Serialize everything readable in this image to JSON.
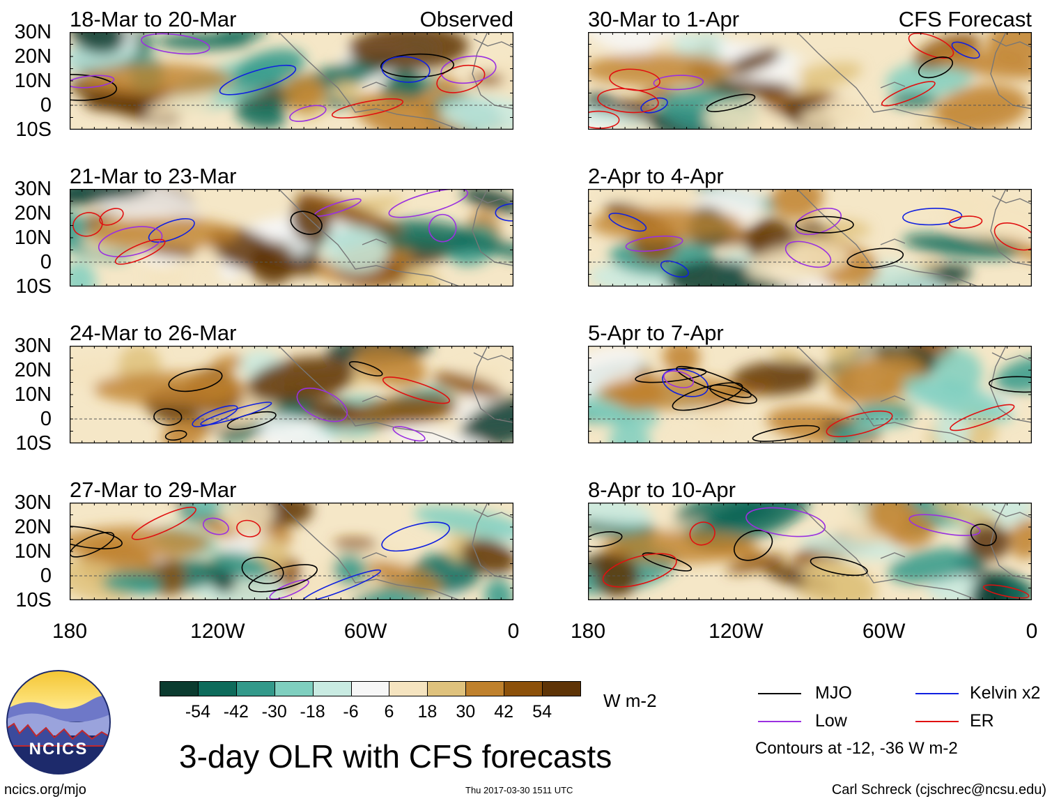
{
  "colors": {
    "mjo": "#000000",
    "kelvin": "#1020e0",
    "low": "#9a30e0",
    "er": "#e01010",
    "land_outline": "#777777"
  },
  "panels": [
    {
      "title": "18-Mar to 20-Mar",
      "label": "Observed",
      "side": "left"
    },
    {
      "title": "21-Mar to 23-Mar",
      "label": "",
      "side": "left"
    },
    {
      "title": "24-Mar to 26-Mar",
      "label": "",
      "side": "left"
    },
    {
      "title": "27-Mar to 29-Mar",
      "label": "",
      "side": "left"
    },
    {
      "title": "30-Mar to 1-Apr",
      "label": "CFS Forecast",
      "side": "right"
    },
    {
      "title": "2-Apr to 4-Apr",
      "label": "",
      "side": "right"
    },
    {
      "title": "5-Apr to 7-Apr",
      "label": "",
      "side": "right"
    },
    {
      "title": "8-Apr to 10-Apr",
      "label": "",
      "side": "right"
    }
  ],
  "axes": {
    "lat_labels": [
      "30N",
      "20N",
      "10N",
      "0",
      "10S"
    ],
    "lon_labels": [
      "180",
      "120W",
      "60W",
      "0"
    ]
  },
  "colorbar": {
    "colors": [
      "#0b3b2f",
      "#0e6b5b",
      "#33998a",
      "#7fcfbf",
      "#c9ebe2",
      "#f7f7f7",
      "#f5e4c0",
      "#dfc27d",
      "#bf812d",
      "#8c510a",
      "#5e3406"
    ],
    "labels": [
      "-54",
      "-42",
      "-30",
      "-18",
      "-6",
      "6",
      "18",
      "30",
      "42",
      "54"
    ],
    "units": "W m-2"
  },
  "legend": {
    "mjo": "MJO",
    "kelvin": "Kelvin x2",
    "low": "Low",
    "er": "ER",
    "note": "Contours at -12, -36 W m-2"
  },
  "title": "3-day OLR with CFS forecasts",
  "logo_text": "NCICS",
  "footer": {
    "left": "ncics.org/mjo",
    "center": "Thu 2017-03-30 1511 UTC",
    "right": "Carl Schreck (cjschrec@ncsu.edu)"
  }
}
